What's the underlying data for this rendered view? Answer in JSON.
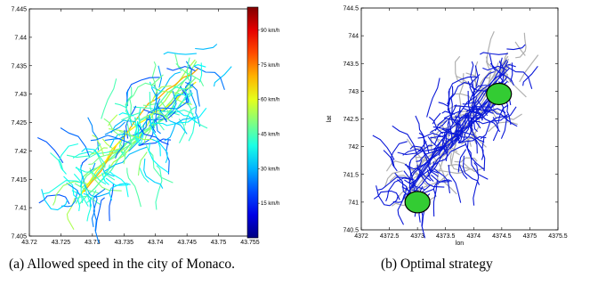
{
  "chart_data": [
    {
      "type": "line",
      "caption": "(a) Allowed speed in the city of Monaco.",
      "xlim": [
        43.72,
        43.755
      ],
      "ylim": [
        7.405,
        7.445
      ],
      "x_ticks": [
        "43.72",
        "43.725",
        "43.73",
        "43.735",
        "43.74",
        "43.745",
        "43.75",
        "43.755"
      ],
      "y_ticks": [
        "7.405",
        "7.41",
        "7.415",
        "7.42",
        "7.425",
        "7.43",
        "7.435",
        "7.44",
        "7.445"
      ],
      "colorbar": {
        "colormap": "jet",
        "range": [
          0,
          100
        ],
        "tick_values": [
          15,
          30,
          45,
          60,
          75,
          90
        ],
        "tick_labels": [
          "15 km/h",
          "30 km/h",
          "45 km/h",
          "60 km/h",
          "75 km/h",
          "90 km/h"
        ]
      },
      "grid": false
    },
    {
      "type": "line",
      "caption": "(b) Optimal strategy",
      "xlabel": "lon",
      "ylabel": "lat",
      "xlim": [
        4372,
        4375.5
      ],
      "ylim": [
        740.5,
        744.5
      ],
      "x_ticks": [
        "4372",
        "4372.5",
        "4373",
        "4373.5",
        "4374",
        "4374.5",
        "4375",
        "4375.5"
      ],
      "y_ticks": [
        "740.5",
        "741",
        "741.5",
        "742",
        "742.5",
        "743",
        "743.5",
        "744",
        "744.5"
      ],
      "markers": [
        {
          "x": 4373.0,
          "y": 741.0,
          "color": "#33cc33"
        },
        {
          "x": 4374.45,
          "y": 742.95,
          "color": "#33cc33"
        }
      ],
      "grid": false
    }
  ]
}
